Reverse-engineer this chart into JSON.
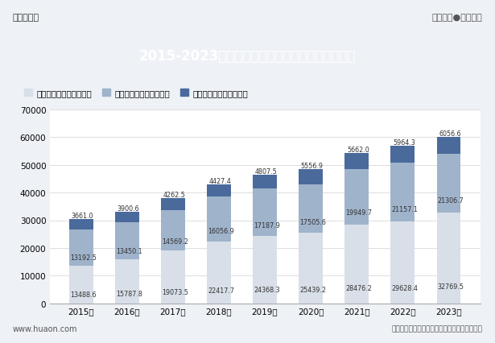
{
  "title": "2015-2023年四川省第一、第二及第三产业增加值",
  "years": [
    "2015年",
    "2016年",
    "2017年",
    "2018年",
    "2019年",
    "2020年",
    "2021年",
    "2022年",
    "2023年"
  ],
  "industry1": [
    3661,
    3900.6,
    4262.5,
    4427.4,
    4807.5,
    5556.9,
    5662,
    5964.3,
    6056.6
  ],
  "industry2": [
    13192.5,
    13450.1,
    14569.2,
    16056.9,
    17187.9,
    17505.6,
    19949.7,
    21157.1,
    21306.7
  ],
  "industry3": [
    13488.6,
    15787.8,
    19073.5,
    22417.7,
    24368.3,
    25439.2,
    28476.2,
    29628.4,
    32769.5
  ],
  "color1": "#4a6a9c",
  "color2": "#9fb3cb",
  "color3": "#d8dfe8",
  "legend1": "第三产业增加值（亿元）",
  "legend2": "第二产业增加值（亿元）",
  "legend3": "第一产业增加值（亿元）",
  "ylim": [
    0,
    70000
  ],
  "yticks": [
    0,
    10000,
    20000,
    30000,
    40000,
    50000,
    60000,
    70000
  ],
  "header_bg": "#3a5795",
  "header_text": "#ffffff",
  "bg_color": "#eef1f6",
  "source_text": "数据来源：四川省统计局；华经产业研究院整理",
  "left_label": "www.huaon.com",
  "top_left": "华经情报网",
  "top_right": "专业严谨●客观科学"
}
